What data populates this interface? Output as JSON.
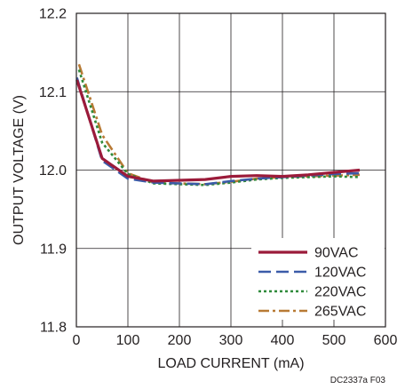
{
  "chart_data": {
    "type": "line",
    "title": "",
    "xlabel": "LOAD CURRENT (mA)",
    "ylabel": "OUTPUT VOLTAGE (V)",
    "xlim": [
      0,
      600
    ],
    "ylim": [
      11.8,
      12.2
    ],
    "xticks": [
      "0",
      "100",
      "200",
      "300",
      "400",
      "500",
      "600"
    ],
    "yticks": [
      "11.8",
      "11.9",
      "12.0",
      "12.1",
      "12.2"
    ],
    "grid": true,
    "legend_position": "bottom-right",
    "series": [
      {
        "name": "90VAC",
        "color": "#9b1b3a",
        "style": "solid",
        "x": [
          1,
          50,
          100,
          150,
          200,
          250,
          300,
          350,
          400,
          450,
          500,
          550
        ],
        "y": [
          12.115,
          12.015,
          11.992,
          11.986,
          11.987,
          11.988,
          11.992,
          11.993,
          11.992,
          11.994,
          11.997,
          12.0
        ]
      },
      {
        "name": "120VAC",
        "color": "#3b5ba8",
        "style": "dash",
        "x": [
          1,
          50,
          100,
          150,
          200,
          250,
          300,
          350,
          400,
          450,
          500,
          550
        ],
        "y": [
          12.118,
          12.012,
          11.989,
          11.984,
          11.983,
          11.982,
          11.986,
          11.989,
          11.991,
          11.993,
          11.995,
          11.996
        ]
      },
      {
        "name": "220VAC",
        "color": "#2f8a3a",
        "style": "dot",
        "x": [
          5,
          50,
          100,
          150,
          200,
          250,
          300,
          350,
          400,
          450,
          500,
          550
        ],
        "y": [
          12.128,
          12.035,
          11.995,
          11.983,
          11.982,
          11.981,
          11.984,
          11.988,
          11.99,
          11.991,
          11.992,
          11.991
        ]
      },
      {
        "name": "265VAC",
        "color": "#b87a35",
        "style": "dashdot",
        "x": [
          5,
          50,
          100,
          150,
          200,
          250,
          300,
          350,
          400,
          450,
          500,
          550
        ],
        "y": [
          12.135,
          12.045,
          11.996,
          11.984,
          11.983,
          11.982,
          11.985,
          11.989,
          11.991,
          11.992,
          11.993,
          11.994
        ]
      }
    ],
    "footnote": "DC2337a F03"
  }
}
